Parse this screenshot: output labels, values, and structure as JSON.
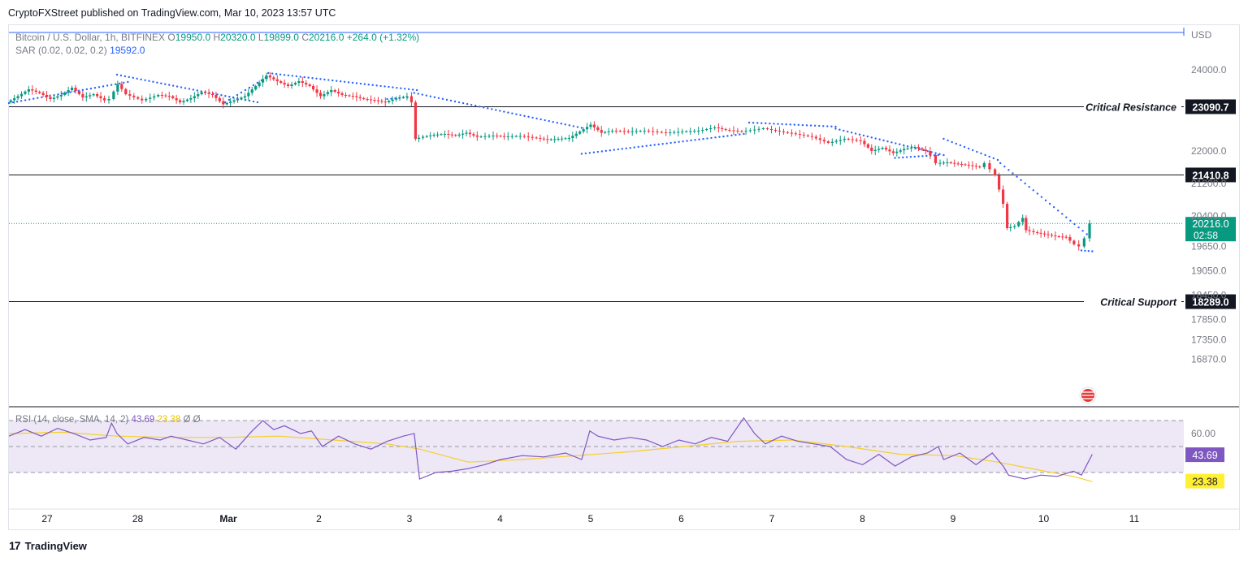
{
  "header": {
    "published": "CryptoFXStreet published on TradingView.com, Mar 10, 2023 13:57 UTC"
  },
  "legend": {
    "symbol": "Bitcoin / U.S. Dollar, 1h, BITFINEX",
    "open_label": "O",
    "open": "19950.0",
    "high_label": "H",
    "high": "20320.0",
    "low_label": "L",
    "low": "19899.0",
    "close_label": "C",
    "close": "20216.0",
    "change": "+264.0 (+1.32%)",
    "sar_label": "SAR (0.02, 0.02, 0.2)",
    "sar_value": "19592.0"
  },
  "rsi_legend": {
    "label": "RSI (14, close, SMA, 14, 2)",
    "rsi_value": "43.69",
    "sma_value": "23.38",
    "extra": "Ø Ø"
  },
  "footer": {
    "brand": "TradingView",
    "logo": "17"
  },
  "colors": {
    "up": "#089981",
    "down": "#f23645",
    "sar": "#2962ff",
    "rsi": "#7e57c2",
    "rsi_sma": "#f5d02a",
    "rsi_band": "#ede7f6"
  },
  "chart_data": [
    {
      "type": "candlestick",
      "symbol": "BTC/USD",
      "interval": "1h",
      "price_axis": {
        "unit": "USD",
        "ticks": [
          24000.0,
          22000.0,
          21200.0,
          20400.0,
          19650.0,
          19050.0,
          18450.0,
          17850.0,
          17350.0,
          16870.0
        ],
        "tick_labels": [
          "24000.0",
          "22000.0",
          "21200.0",
          "20400.0",
          "19650.0",
          "19050.0",
          "18450.0",
          "17850.0",
          "17350.0",
          "16870.0"
        ]
      },
      "x_axis": {
        "ticks": [
          "27",
          "28",
          "Mar",
          "2",
          "3",
          "4",
          "5",
          "6",
          "7",
          "8",
          "9",
          "10",
          "11"
        ]
      },
      "levels": [
        {
          "price": 23090.7,
          "label": "Critical Resistance",
          "tag": "23090.7"
        },
        {
          "price": 21410.8,
          "label": "",
          "tag": "21410.8"
        },
        {
          "price": 18289.0,
          "label": "Critical Support",
          "tag": "18289.0"
        }
      ],
      "current_price": {
        "value": 20216.0,
        "label": "20216.0",
        "countdown": "02:58"
      },
      "ohlc_path": [
        [
          0,
          23200
        ],
        [
          0.2,
          23350
        ],
        [
          0.4,
          23520
        ],
        [
          0.6,
          23430
        ],
        [
          0.8,
          23280
        ],
        [
          1.0,
          23380
        ],
        [
          1.2,
          23560
        ],
        [
          1.4,
          23320
        ],
        [
          1.6,
          23400
        ],
        [
          1.8,
          23250
        ],
        [
          1.9,
          23280
        ],
        [
          2.05,
          23650
        ],
        [
          2.2,
          23400
        ],
        [
          2.5,
          23250
        ],
        [
          2.8,
          23380
        ],
        [
          3.0,
          23350
        ],
        [
          3.2,
          23200
        ],
        [
          3.4,
          23300
        ],
        [
          3.6,
          23450
        ],
        [
          3.8,
          23380
        ],
        [
          4.0,
          23150
        ],
        [
          4.2,
          23250
        ],
        [
          4.4,
          23350
        ],
        [
          4.6,
          23600
        ],
        [
          4.8,
          23860
        ],
        [
          5.0,
          23720
        ],
        [
          5.2,
          23600
        ],
        [
          5.4,
          23720
        ],
        [
          5.6,
          23600
        ],
        [
          5.8,
          23350
        ],
        [
          6.0,
          23500
        ],
        [
          6.2,
          23380
        ],
        [
          6.4,
          23350
        ],
        [
          6.6,
          23280
        ],
        [
          6.8,
          23250
        ],
        [
          7.0,
          23200
        ],
        [
          7.2,
          23300
        ],
        [
          7.4,
          23350
        ],
        [
          7.5,
          23200
        ],
        [
          7.55,
          22300
        ],
        [
          7.7,
          22350
        ],
        [
          7.9,
          22400
        ],
        [
          8.1,
          22420
        ],
        [
          8.3,
          22380
        ],
        [
          8.5,
          22450
        ],
        [
          8.7,
          22350
        ],
        [
          9.0,
          22380
        ],
        [
          9.2,
          22360
        ],
        [
          9.5,
          22370
        ],
        [
          9.8,
          22320
        ],
        [
          10.0,
          22280
        ],
        [
          10.2,
          22300
        ],
        [
          10.4,
          22320
        ],
        [
          10.6,
          22480
        ],
        [
          10.8,
          22650
        ],
        [
          11.0,
          22450
        ],
        [
          11.2,
          22500
        ],
        [
          11.5,
          22480
        ],
        [
          11.8,
          22500
        ],
        [
          12.2,
          22450
        ],
        [
          12.5,
          22480
        ],
        [
          12.8,
          22500
        ],
        [
          13.1,
          22580
        ],
        [
          13.3,
          22520
        ],
        [
          13.6,
          22480
        ],
        [
          14.0,
          22560
        ],
        [
          14.3,
          22480
        ],
        [
          14.6,
          22420
        ],
        [
          14.9,
          22350
        ],
        [
          15.2,
          22200
        ],
        [
          15.5,
          22300
        ],
        [
          15.8,
          22250
        ],
        [
          16.0,
          22000
        ],
        [
          16.2,
          22080
        ],
        [
          16.4,
          21950
        ],
        [
          16.6,
          22050
        ],
        [
          16.8,
          22100
        ],
        [
          17.0,
          22000
        ],
        [
          17.1,
          21900
        ],
        [
          17.2,
          21700
        ],
        [
          17.4,
          21720
        ],
        [
          17.6,
          21680
        ],
        [
          17.8,
          21650
        ],
        [
          18.0,
          21600
        ],
        [
          18.1,
          21700
        ],
        [
          18.2,
          21550
        ],
        [
          18.3,
          21400
        ],
        [
          18.35,
          21050
        ],
        [
          18.45,
          20700
        ],
        [
          18.5,
          20100
        ],
        [
          18.65,
          20150
        ],
        [
          18.8,
          20350
        ],
        [
          18.85,
          20050
        ],
        [
          19.0,
          20000
        ],
        [
          19.2,
          19950
        ],
        [
          19.4,
          19900
        ],
        [
          19.6,
          19880
        ],
        [
          19.75,
          19700
        ],
        [
          19.85,
          19650
        ],
        [
          19.95,
          19850
        ],
        [
          20.05,
          20216
        ]
      ],
      "sar_segments": [
        {
          "side": "below",
          "from": [
            0,
            23180
          ],
          "to": [
            2.2,
            23700
          ]
        },
        {
          "side": "above",
          "from": [
            2.0,
            23880
          ],
          "to": [
            4.6,
            23200
          ]
        },
        {
          "side": "below",
          "from": [
            4.0,
            23200
          ],
          "to": [
            4.75,
            23800
          ]
        },
        {
          "side": "above",
          "from": [
            4.8,
            23920
          ],
          "to": [
            7.55,
            23500
          ]
        },
        {
          "side": "below",
          "from": [
            7.0,
            23280
          ],
          "to": [
            7.45,
            23330
          ]
        },
        {
          "side": "above",
          "from": [
            7.5,
            23430
          ],
          "to": [
            10.6,
            22570
          ]
        },
        {
          "side": "below",
          "from": [
            10.6,
            21930
          ],
          "to": [
            13.6,
            22420
          ]
        },
        {
          "side": "above",
          "from": [
            13.7,
            22700
          ],
          "to": [
            15.3,
            22600
          ]
        },
        {
          "side": "above",
          "from": [
            15.3,
            22550
          ],
          "to": [
            17.3,
            21900
          ]
        },
        {
          "side": "below",
          "from": [
            16.4,
            21830
          ],
          "to": [
            17.2,
            21900
          ]
        },
        {
          "side": "above",
          "from": [
            17.3,
            22300
          ],
          "to": [
            18.3,
            21780
          ]
        },
        {
          "side": "above",
          "from": [
            18.35,
            21700
          ],
          "to": [
            19.95,
            19950
          ]
        },
        {
          "side": "below",
          "from": [
            19.85,
            19550
          ],
          "to": [
            20.05,
            19530
          ]
        }
      ]
    },
    {
      "type": "line",
      "name": "RSI (14, close, SMA, 14, 2)",
      "y_axis": {
        "ticks": [
          60.0
        ],
        "tick_labels": [
          "60.00"
        ],
        "bands": [
          70,
          30
        ]
      },
      "current": {
        "rsi": 43.69,
        "sma": 23.38
      },
      "rsi_path": [
        [
          0,
          58
        ],
        [
          0.3,
          63
        ],
        [
          0.6,
          58
        ],
        [
          0.9,
          64
        ],
        [
          1.2,
          60
        ],
        [
          1.5,
          55
        ],
        [
          1.8,
          57
        ],
        [
          1.9,
          68
        ],
        [
          2.0,
          60
        ],
        [
          2.2,
          52
        ],
        [
          2.5,
          57
        ],
        [
          2.8,
          55
        ],
        [
          3.0,
          58
        ],
        [
          3.3,
          55
        ],
        [
          3.6,
          52
        ],
        [
          3.9,
          57
        ],
        [
          4.2,
          48
        ],
        [
          4.5,
          62
        ],
        [
          4.7,
          70
        ],
        [
          4.9,
          63
        ],
        [
          5.1,
          66
        ],
        [
          5.4,
          60
        ],
        [
          5.6,
          62
        ],
        [
          5.8,
          50
        ],
        [
          6.1,
          58
        ],
        [
          6.4,
          52
        ],
        [
          6.7,
          48
        ],
        [
          7.0,
          54
        ],
        [
          7.3,
          58
        ],
        [
          7.5,
          60
        ],
        [
          7.6,
          25
        ],
        [
          7.9,
          30
        ],
        [
          8.2,
          31
        ],
        [
          8.5,
          33
        ],
        [
          8.8,
          36
        ],
        [
          9.1,
          40
        ],
        [
          9.5,
          43
        ],
        [
          9.9,
          42
        ],
        [
          10.3,
          45
        ],
        [
          10.6,
          40
        ],
        [
          10.75,
          62
        ],
        [
          10.9,
          58
        ],
        [
          11.2,
          55
        ],
        [
          11.5,
          57
        ],
        [
          11.8,
          55
        ],
        [
          12.1,
          50
        ],
        [
          12.4,
          55
        ],
        [
          12.7,
          52
        ],
        [
          13.0,
          57
        ],
        [
          13.3,
          54
        ],
        [
          13.6,
          72
        ],
        [
          13.8,
          60
        ],
        [
          14.0,
          52
        ],
        [
          14.3,
          58
        ],
        [
          14.6,
          54
        ],
        [
          14.9,
          52
        ],
        [
          15.2,
          50
        ],
        [
          15.5,
          40
        ],
        [
          15.8,
          36
        ],
        [
          16.1,
          44
        ],
        [
          16.4,
          35
        ],
        [
          16.7,
          42
        ],
        [
          17.0,
          45
        ],
        [
          17.2,
          50
        ],
        [
          17.3,
          40
        ],
        [
          17.6,
          45
        ],
        [
          17.9,
          36
        ],
        [
          18.2,
          45
        ],
        [
          18.4,
          35
        ],
        [
          18.5,
          28
        ],
        [
          18.8,
          25
        ],
        [
          19.1,
          28
        ],
        [
          19.4,
          27
        ],
        [
          19.7,
          31
        ],
        [
          19.85,
          28
        ],
        [
          20.05,
          44
        ]
      ],
      "sma_path": [
        [
          0,
          60
        ],
        [
          1,
          61
        ],
        [
          2,
          58
        ],
        [
          3,
          57
        ],
        [
          4,
          57
        ],
        [
          5,
          58
        ],
        [
          6,
          55
        ],
        [
          7,
          52
        ],
        [
          7.6,
          48
        ],
        [
          8.5,
          38
        ],
        [
          9.5,
          40
        ],
        [
          10.5,
          43
        ],
        [
          11.5,
          46
        ],
        [
          12.5,
          50
        ],
        [
          13.5,
          54
        ],
        [
          14.5,
          55
        ],
        [
          15.5,
          50
        ],
        [
          16.5,
          44
        ],
        [
          17.5,
          43
        ],
        [
          18.3,
          38
        ],
        [
          18.8,
          34
        ],
        [
          19.3,
          30
        ],
        [
          19.7,
          27
        ],
        [
          20.05,
          23
        ]
      ]
    }
  ]
}
